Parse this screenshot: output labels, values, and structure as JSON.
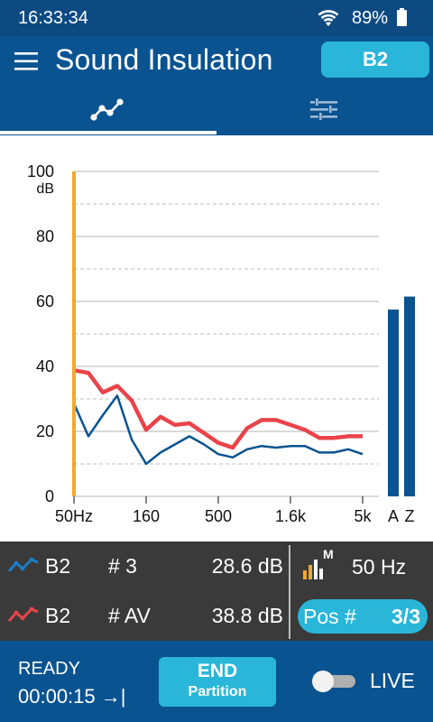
{
  "status_bar": {
    "time": "16:33:34",
    "battery": "89%",
    "wifi_icon": "wifi-icon",
    "battery_icon": "battery-icon"
  },
  "app_bar": {
    "title": "Sound Insulation",
    "mode_button": "B2",
    "menu_icon": "menu-icon"
  },
  "tabs": [
    {
      "icon": "graph-icon",
      "selected": true
    },
    {
      "icon": "sliders-icon",
      "selected": false
    }
  ],
  "chart_data": {
    "type": "line",
    "ylabel": "dB",
    "y_top_label": "100",
    "ylim": [
      0,
      100
    ],
    "yticks": [
      "0",
      "20",
      "40",
      "60",
      "80",
      "100"
    ],
    "x_tick_labels": [
      "50Hz",
      "160",
      "500",
      "1.6k",
      "5k"
    ],
    "bands": [
      "50",
      "63",
      "80",
      "100",
      "125",
      "160",
      "200",
      "250",
      "315",
      "400",
      "500",
      "630",
      "800",
      "1k",
      "1.25k",
      "1.6k",
      "2k",
      "2.5k",
      "3.15k",
      "4k",
      "5k"
    ],
    "cursor_band": "50",
    "series": [
      {
        "color": "#e8444a",
        "values": [
          38.8,
          38,
          32,
          34,
          29.5,
          20.5,
          24.5,
          22,
          22.5,
          19.5,
          16.5,
          15,
          21,
          23.5,
          23.5,
          22,
          20.5,
          18,
          18,
          18.5,
          18.5
        ]
      },
      {
        "color": "#0a5391",
        "values": [
          28.6,
          18.5,
          25,
          31,
          17.5,
          10,
          13.5,
          16,
          18.5,
          16,
          13,
          12,
          14.5,
          15.5,
          15,
          15.5,
          15.5,
          13.5,
          13.5,
          14.5,
          13
        ]
      }
    ],
    "overall_bars": [
      {
        "label": "A",
        "value": 57.5
      },
      {
        "label": "Z",
        "value": 61.5
      }
    ],
    "grid": true,
    "bar_color": "#0a5391",
    "cursor_color": "#f0a830"
  },
  "legend": {
    "rows": [
      {
        "icon": "blue-line-icon",
        "name": "B2",
        "number": "# 3",
        "level": "28.6 dB"
      },
      {
        "icon": "red-line-icon",
        "name": "B2",
        "number": "# AV",
        "level": "38.8 dB"
      }
    ],
    "freq_icon": "bar-meter-icon",
    "freq_icon_letter": "M",
    "frequency": "50 Hz",
    "pos_label": "Pos #",
    "pos_value": "3/3"
  },
  "footer": {
    "state": "READY",
    "timer": "00:00:15 →|",
    "end_button": {
      "line1": "END",
      "line2": "Partition"
    },
    "live_label": "LIVE",
    "live_on": false
  }
}
